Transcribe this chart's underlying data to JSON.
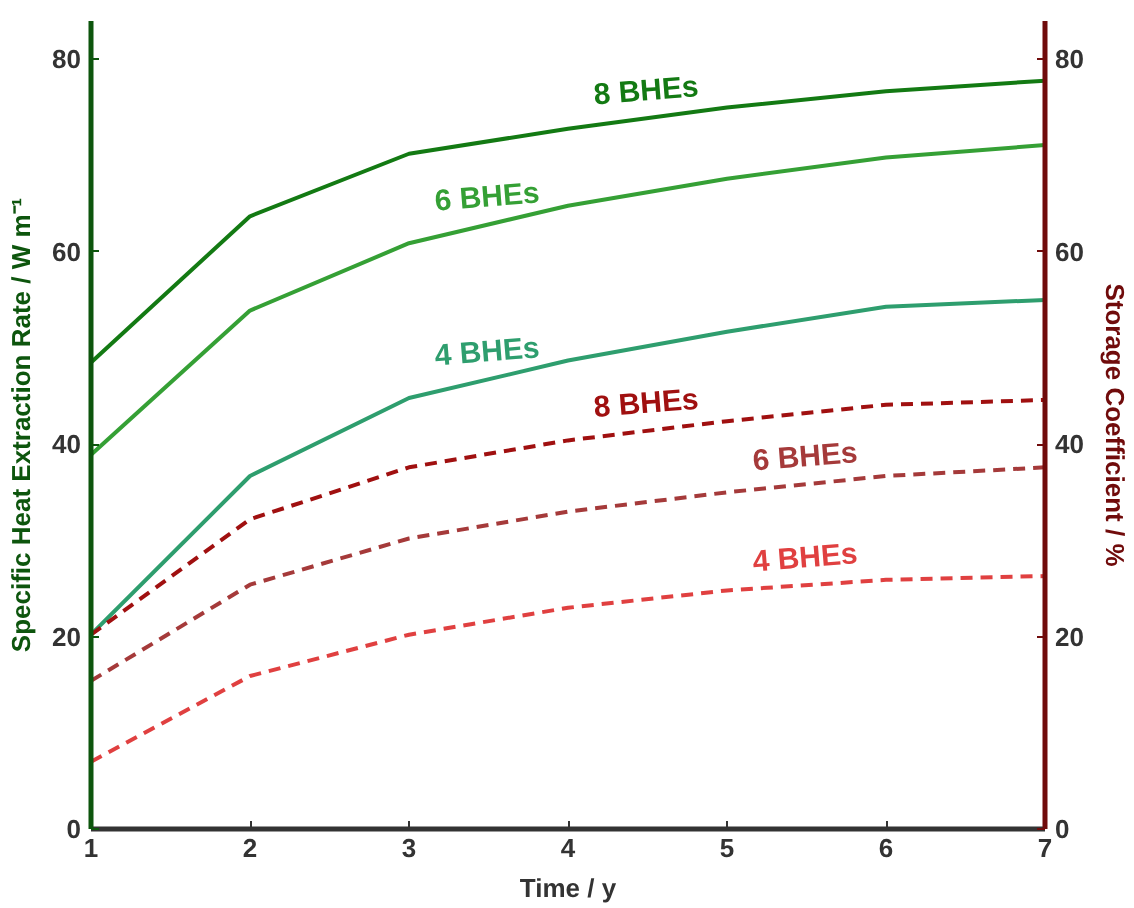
{
  "chart_data": {
    "type": "line",
    "xlabel": "Time / y",
    "ylabel": "Specific Heat Extraction Rate / W m⁻¹",
    "y2label": "Storage Coefficient / %",
    "x": [
      1,
      2,
      3,
      4,
      5,
      6,
      7
    ],
    "xlim": [
      1,
      7
    ],
    "xticks": [
      1,
      2,
      3,
      4,
      5,
      6,
      7
    ],
    "ylim": [
      0,
      84
    ],
    "yticks": [
      0,
      20,
      40,
      60,
      80
    ],
    "y2lim": [
      0,
      84
    ],
    "y2ticks": [
      0,
      20,
      40,
      60,
      80
    ],
    "grid": false,
    "marker": "none",
    "series": [
      {
        "name": "8 BHEs",
        "color": "#137a13",
        "values": [
          48.5,
          63.7,
          70.2,
          72.8,
          75,
          76.7,
          77.8
        ],
        "line_style": "solid"
      },
      {
        "name": "6 BHEs",
        "color": "#35a035",
        "values": [
          38.9,
          53.9,
          60.9,
          64.8,
          67.6,
          69.8,
          71.1
        ],
        "line_style": "solid"
      },
      {
        "name": "4 BHEs",
        "color": "#2e9e6e",
        "values": [
          20.2,
          36.7,
          44.8,
          48.7,
          51.7,
          54.3,
          55
        ],
        "line_style": "solid"
      },
      {
        "name": "8 BHEs",
        "color": "#a01010",
        "values": [
          20.2,
          32.2,
          37.6,
          40.4,
          42.4,
          44.1,
          44.6
        ],
        "line_style": "dashed",
        "axis": "y2"
      },
      {
        "name": "6 BHEs",
        "color": "#a53a3a",
        "values": [
          15.4,
          25.4,
          30.2,
          33,
          35,
          36.7,
          37.6
        ],
        "line_style": "dashed",
        "axis": "y2"
      },
      {
        "name": "4 BHEs",
        "color": "#e04040",
        "values": [
          7,
          15.9,
          20.2,
          23,
          24.8,
          25.9,
          26.3
        ],
        "line_style": "dashed",
        "axis": "y2"
      }
    ]
  }
}
